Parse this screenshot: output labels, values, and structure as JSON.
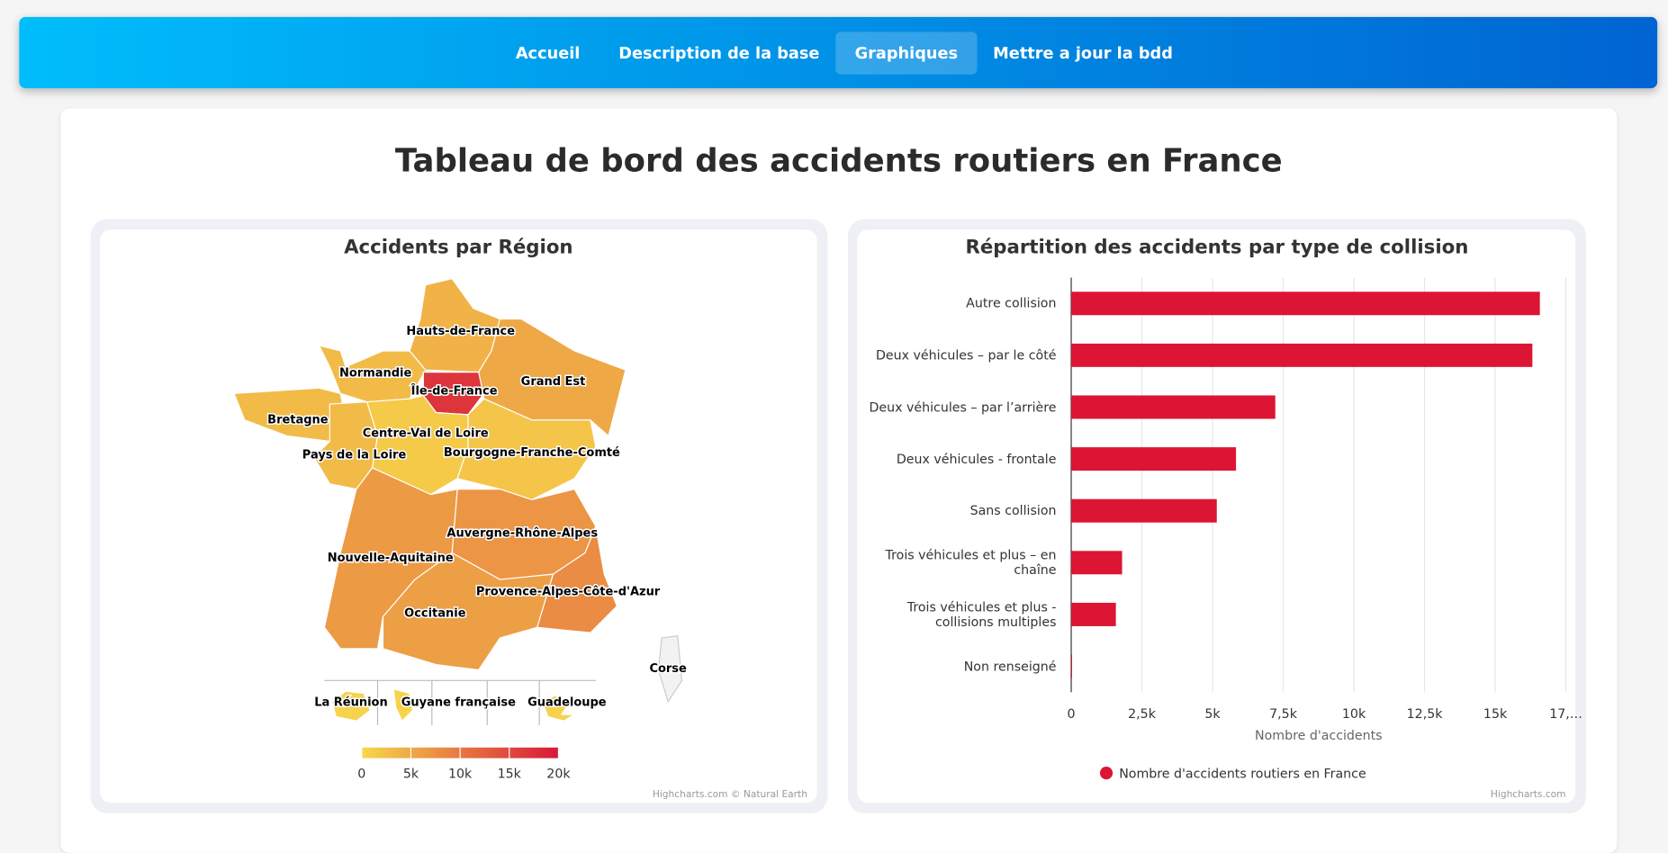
{
  "nav": {
    "items": [
      "Accueil",
      "Description de la base",
      "Graphiques",
      "Mettre a jour la bdd"
    ],
    "active": 2
  },
  "page_title": "Tableau de bord des accidents routiers en France",
  "chart_data": [
    {
      "type": "map",
      "title": "Accidents par Région",
      "categories": [
        "Hauts-de-France",
        "Normandie",
        "Île-de-France",
        "Grand Est",
        "Bretagne",
        "Pays de la Loire",
        "Centre-Val de Loire",
        "Bourgogne-Franche-Comté",
        "Nouvelle-Aquitaine",
        "Auvergne-Rhône-Alpes",
        "Occitanie",
        "Provence-Alpes-Côte-d'Azur",
        "Corse",
        "La Réunion",
        "Guyane française",
        "Guadeloupe"
      ],
      "values": [
        4000,
        3000,
        17000,
        5000,
        3000,
        3000,
        1500,
        2000,
        6500,
        7000,
        6000,
        8000,
        null,
        500,
        500,
        500
      ],
      "min_color": "#f7d84a",
      "max_color": "#d7193a",
      "null_color": "#f2f2f2",
      "colorlim": [
        0,
        20000
      ],
      "colorticks": [
        0,
        {
          "value": 5000,
          "label": "5k"
        },
        {
          "value": 10000,
          "label": "10k"
        },
        {
          "value": 15000,
          "label": "15k"
        },
        {
          "value": 20000,
          "label": "20k"
        }
      ],
      "credits": "Highcharts.com © Natural Earth"
    },
    {
      "type": "bar",
      "orientation": "horizontal",
      "title": "Répartition des accidents par type de collision",
      "categories": [
        "Autre collision",
        "Deux véhicules – par le côté",
        "Deux véhicules – par l’arrière",
        "Deux véhicules - frontale",
        "Sans collision",
        "Trois véhicules et plus – en chaîne",
        "Trois véhicules et plus - collisions multiples",
        "Non renseigné"
      ],
      "series": [
        {
          "name": "Nombre d'accidents routiers en France",
          "color": "#dc1534",
          "values": [
            16580,
            16315,
            7220,
            5830,
            5150,
            1800,
            1580,
            30
          ]
        }
      ],
      "xlim": [
        0,
        17500
      ],
      "xticks": [
        0,
        {
          "value": 2500,
          "label": "2,5k"
        },
        {
          "value": 5000,
          "label": "5k"
        },
        {
          "value": 7500,
          "label": "7,5k"
        },
        {
          "value": 10000,
          "label": "10k"
        },
        {
          "value": 12500,
          "label": "12,5k"
        },
        {
          "value": 15000,
          "label": "15k"
        },
        {
          "value": 17500,
          "label": "17,…"
        }
      ],
      "xlabel": "Nombre d'accidents",
      "grid": true,
      "credits": "Highcharts.com"
    }
  ]
}
